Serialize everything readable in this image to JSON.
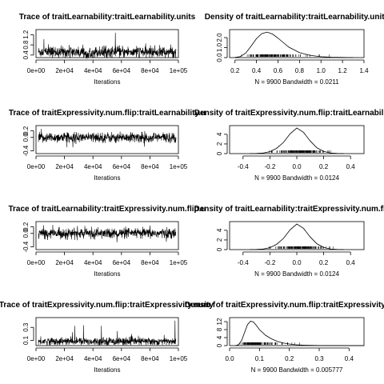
{
  "chart_data": [
    {
      "type": "line",
      "title": "Trace of traitLearnability:traitLearnability.units",
      "xlabel": "Iterations",
      "xlim": [
        0,
        100000
      ],
      "x_ticks": [
        0,
        20000,
        40000,
        60000,
        80000,
        100000
      ],
      "x_tick_labels": [
        "0e+00",
        "2e+04",
        "4e+04",
        "6e+04",
        "8e+04",
        "1e+05"
      ],
      "ylim": [
        0.3,
        1.4
      ],
      "y_ticks": [
        0.4,
        0.8,
        1.2
      ],
      "y_tick_labels": [
        "0.4",
        "0.8",
        "1.2"
      ],
      "series": [
        {
          "mean": 0.52,
          "sd": 0.11,
          "min": 0.28,
          "max": 1.3
        }
      ]
    },
    {
      "type": "line",
      "title": "Density of traitLearnability:traitLearnability.units",
      "xlabel": "N = 9900   Bandwidth = 0.0211",
      "xlim": [
        0.15,
        1.4
      ],
      "x_ticks": [
        0.2,
        0.4,
        0.6,
        0.8,
        1.0,
        1.2,
        1.4
      ],
      "x_tick_labels": [
        "0.2",
        "0.4",
        "0.6",
        "0.8",
        "1.0",
        "1.2",
        "1.4"
      ],
      "ylim": [
        0,
        2.8
      ],
      "y_ticks": [
        0.0,
        1.0,
        2.0
      ],
      "y_tick_labels": [
        "0.0",
        "1.0",
        "2.0"
      ],
      "series": [
        {
          "x": [
            0.2,
            0.25,
            0.3,
            0.35,
            0.4,
            0.45,
            0.5,
            0.55,
            0.6,
            0.65,
            0.7,
            0.8,
            0.9,
            1.0,
            1.1,
            1.2,
            1.3
          ],
          "y": [
            0.02,
            0.1,
            0.45,
            1.15,
            1.9,
            2.4,
            2.55,
            2.35,
            1.95,
            1.5,
            1.05,
            0.5,
            0.22,
            0.09,
            0.04,
            0.015,
            0.0
          ]
        }
      ]
    },
    {
      "type": "line",
      "title": "Trace of traitExpressivity.num.flip:traitLearnability.u",
      "xlabel": "Iterations",
      "xlim": [
        0,
        100000
      ],
      "x_ticks": [
        0,
        20000,
        40000,
        60000,
        80000,
        100000
      ],
      "x_tick_labels": [
        "0e+00",
        "2e+04",
        "4e+04",
        "6e+04",
        "8e+04",
        "1e+05"
      ],
      "ylim": [
        -0.48,
        0.35
      ],
      "y_ticks": [
        -0.4,
        0.0,
        0.2
      ],
      "y_tick_labels": [
        "-0.4",
        "0.0",
        "0.2"
      ],
      "series": [
        {
          "mean": 0.0,
          "sd": 0.075,
          "min": -0.42,
          "max": 0.3
        }
      ]
    },
    {
      "type": "line",
      "title": "Density of traitExpressivity.num.flip:traitLearnability.u",
      "xlabel": "N = 9900   Bandwidth = 0.0124",
      "xlim": [
        -0.5,
        0.5
      ],
      "x_ticks": [
        -0.4,
        -0.2,
        0.0,
        0.2,
        0.4
      ],
      "x_tick_labels": [
        "-0.4",
        "-0.2",
        "0.0",
        "0.2",
        "0.4"
      ],
      "ylim": [
        0,
        5.8
      ],
      "y_ticks": [
        0,
        2,
        4
      ],
      "y_tick_labels": [
        "0",
        "2",
        "4"
      ],
      "series": [
        {
          "x": [
            -0.35,
            -0.3,
            -0.25,
            -0.2,
            -0.15,
            -0.1,
            -0.05,
            0.0,
            0.05,
            0.1,
            0.15,
            0.2,
            0.25,
            0.3,
            0.35
          ],
          "y": [
            0.0,
            0.03,
            0.12,
            0.4,
            1.1,
            2.3,
            4.1,
            5.3,
            4.4,
            2.6,
            1.2,
            0.45,
            0.12,
            0.03,
            0.0
          ]
        }
      ]
    },
    {
      "type": "line",
      "title": "Trace of traitLearnability:traitExpressivity.num.flip.u",
      "xlabel": "Iterations",
      "xlim": [
        0,
        100000
      ],
      "x_ticks": [
        0,
        20000,
        40000,
        60000,
        80000,
        100000
      ],
      "x_tick_labels": [
        "0e+00",
        "2e+04",
        "4e+04",
        "6e+04",
        "8e+04",
        "1e+05"
      ],
      "ylim": [
        -0.48,
        0.35
      ],
      "y_ticks": [
        -0.4,
        0.0,
        0.2
      ],
      "y_tick_labels": [
        "-0.4",
        "0.0",
        "0.2"
      ],
      "series": [
        {
          "mean": 0.0,
          "sd": 0.075,
          "min": -0.42,
          "max": 0.3
        }
      ]
    },
    {
      "type": "line",
      "title": "Density of traitLearnability:traitExpressivity.num.flip.u",
      "xlabel": "N = 9900   Bandwidth = 0.0124",
      "xlim": [
        -0.5,
        0.5
      ],
      "x_ticks": [
        -0.4,
        -0.2,
        0.0,
        0.2,
        0.4
      ],
      "x_tick_labels": [
        "-0.4",
        "-0.2",
        "0.0",
        "0.2",
        "0.4"
      ],
      "ylim": [
        0,
        5.8
      ],
      "y_ticks": [
        0,
        2,
        4
      ],
      "y_tick_labels": [
        "0",
        "2",
        "4"
      ],
      "series": [
        {
          "x": [
            -0.35,
            -0.3,
            -0.25,
            -0.2,
            -0.15,
            -0.1,
            -0.05,
            0.0,
            0.05,
            0.1,
            0.15,
            0.2,
            0.25,
            0.3,
            0.35
          ],
          "y": [
            0.0,
            0.03,
            0.12,
            0.4,
            1.1,
            2.3,
            4.1,
            5.3,
            4.4,
            2.6,
            1.2,
            0.45,
            0.12,
            0.03,
            0.0
          ]
        }
      ]
    },
    {
      "type": "line",
      "title": "Trace of traitExpressivity.num.flip:traitExpressivity.num.f",
      "xlabel": "Iterations",
      "xlim": [
        0,
        100000
      ],
      "x_ticks": [
        0,
        20000,
        40000,
        60000,
        80000,
        100000
      ],
      "x_tick_labels": [
        "0e+00",
        "2e+04",
        "4e+04",
        "6e+04",
        "8e+04",
        "1e+05"
      ],
      "ylim": [
        0.02,
        0.45
      ],
      "y_ticks": [
        0.1,
        0.3
      ],
      "y_tick_labels": [
        "0.1",
        "0.3"
      ],
      "series": [
        {
          "mean": 0.085,
          "sd": 0.03,
          "min": 0.03,
          "max": 0.42
        }
      ]
    },
    {
      "type": "line",
      "title": "Density of traitExpressivity.num.flip:traitExpressivity.num.f",
      "xlabel": "N = 9900   Bandwidth = 0.005777",
      "xlim": [
        0,
        0.45
      ],
      "x_ticks": [
        0.0,
        0.1,
        0.2,
        0.3,
        0.4
      ],
      "x_tick_labels": [
        "0.0",
        "0.1",
        "0.2",
        "0.3",
        "0.4"
      ],
      "ylim": [
        0,
        14
      ],
      "y_ticks": [
        0,
        4,
        8,
        12
      ],
      "y_tick_labels": [
        "0",
        "4",
        "8",
        "12"
      ],
      "series": [
        {
          "x": [
            0.02,
            0.03,
            0.04,
            0.05,
            0.06,
            0.07,
            0.08,
            0.09,
            0.1,
            0.12,
            0.14,
            0.16,
            0.18,
            0.2,
            0.22,
            0.25,
            0.3,
            0.35,
            0.4,
            0.45
          ],
          "y": [
            0.0,
            0.5,
            2.5,
            6.5,
            10.5,
            12.2,
            11.8,
            10.0,
            8.0,
            5.2,
            3.4,
            2.1,
            1.3,
            0.8,
            0.45,
            0.2,
            0.06,
            0.02,
            0.01,
            0.0
          ]
        }
      ]
    }
  ]
}
